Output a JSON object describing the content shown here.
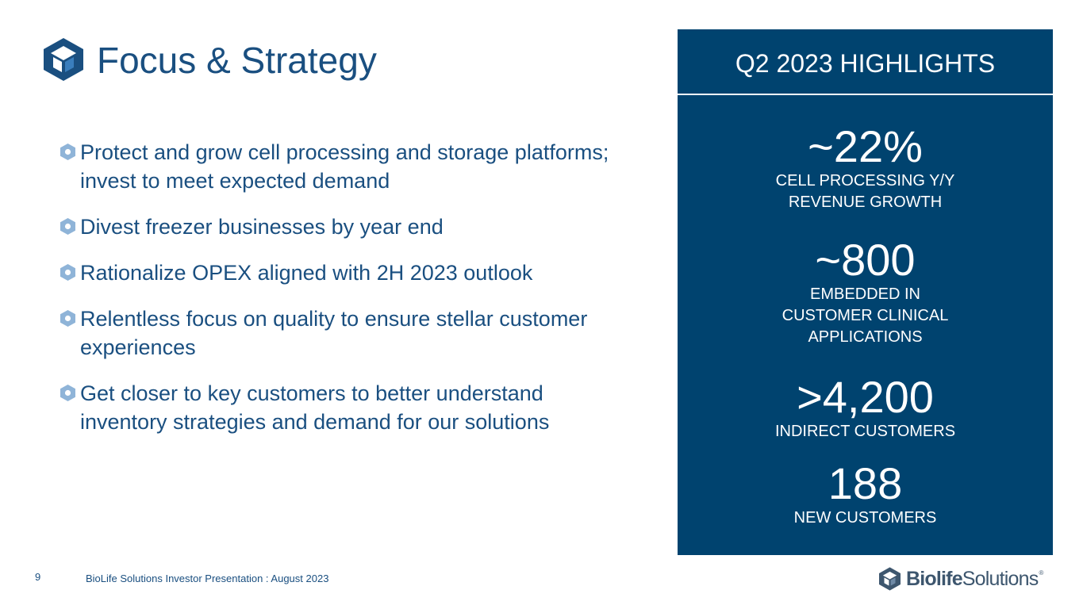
{
  "header": {
    "title": "Focus & Strategy"
  },
  "bullets": [
    "Protect and grow cell processing and storage platforms; invest to meet expected demand",
    "Divest freezer businesses by year end",
    "Rationalize OPEX aligned with 2H 2023 outlook",
    "Relentless focus on quality to ensure stellar customer experiences",
    "Get closer to key customers to better understand inventory strategies and demand for our solutions"
  ],
  "highlights": {
    "title": "Q2 2023 HIGHLIGHTS",
    "stats": [
      {
        "value": "~22%",
        "label": "CELL PROCESSING Y/Y\nREVENUE GROWTH"
      },
      {
        "value": "~800",
        "label": "EMBEDDED IN\nCUSTOMER CLINICAL\nAPPLICATIONS"
      },
      {
        "value": ">4,200",
        "label": "INDIRECT CUSTOMERS"
      },
      {
        "value": "188",
        "label": "NEW CUSTOMERS"
      }
    ]
  },
  "footer": {
    "page_number": "9",
    "text": "BioLife Solutions Investor Presentation : August 2023",
    "brand_bold": "Biolife",
    "brand_regular": "Solutions",
    "brand_mark": "®"
  },
  "colors": {
    "primary_blue": "#1a4f80",
    "panel_navy": "#00436f",
    "bullet_light": "#8fb4d8"
  },
  "icons": [
    "hexagon-cube-logo-icon",
    "hexagon-bullet-icon"
  ]
}
